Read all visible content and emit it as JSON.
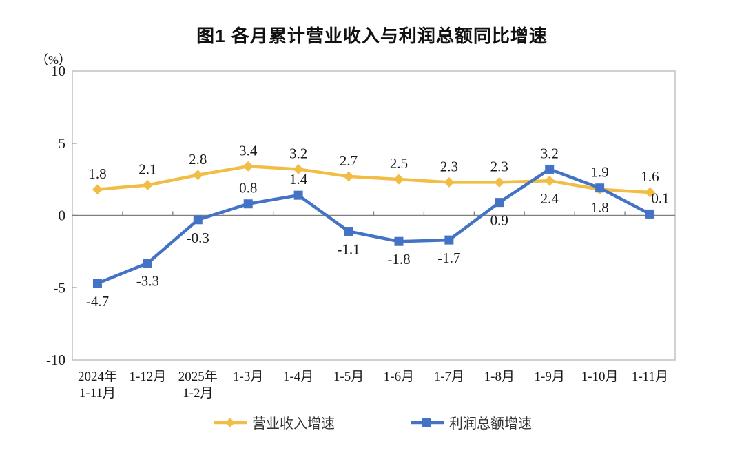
{
  "chart_data": {
    "type": "line",
    "title": "图1  各月累计营业收入与利润总额同比增速",
    "ylabel_unit": "（%）",
    "categories": [
      [
        "2024年",
        "1-11月"
      ],
      [
        "1-12月"
      ],
      [
        "2025年",
        "1-2月"
      ],
      [
        "1-3月"
      ],
      [
        "1-4月"
      ],
      [
        "1-5月"
      ],
      [
        "1-6月"
      ],
      [
        "1-7月"
      ],
      [
        "1-8月"
      ],
      [
        "1-9月"
      ],
      [
        "1-10月"
      ],
      [
        "1-11月"
      ]
    ],
    "series": [
      {
        "name": "营业收入增速",
        "color": "#F2BD45",
        "marker": "diamond",
        "values": [
          1.8,
          2.1,
          2.8,
          3.4,
          3.2,
          2.7,
          2.5,
          2.3,
          2.3,
          2.4,
          1.8,
          1.6
        ],
        "label_pos": [
          "above",
          "above",
          "above",
          "above",
          "above",
          "above",
          "above",
          "above",
          "above",
          "below",
          "below",
          "above"
        ],
        "label_dx": [
          0,
          0,
          0,
          0,
          0,
          0,
          0,
          0,
          0,
          0,
          0,
          0
        ]
      },
      {
        "name": "利润总额增速",
        "color": "#4472C4",
        "marker": "square",
        "values": [
          -4.7,
          -3.3,
          -0.3,
          0.8,
          1.4,
          -1.1,
          -1.8,
          -1.7,
          0.9,
          3.2,
          1.9,
          0.1
        ],
        "label_pos": [
          "below",
          "below",
          "below",
          "above",
          "above",
          "below",
          "below",
          "below",
          "below",
          "above",
          "above",
          "above"
        ],
        "label_dx": [
          0,
          0,
          0,
          0,
          0,
          0,
          0,
          0,
          0,
          0,
          0,
          15
        ]
      }
    ],
    "ylim": [
      -10,
      10
    ],
    "ytick_step": 5,
    "ytick_labels": [
      "10",
      "5",
      "0",
      "-5",
      "-10"
    ],
    "grid": false,
    "legend_position": "bottom",
    "axis_color": "#7F7F7F",
    "border_color": "#BDBDBD",
    "text_color": "#1a1a1a"
  }
}
